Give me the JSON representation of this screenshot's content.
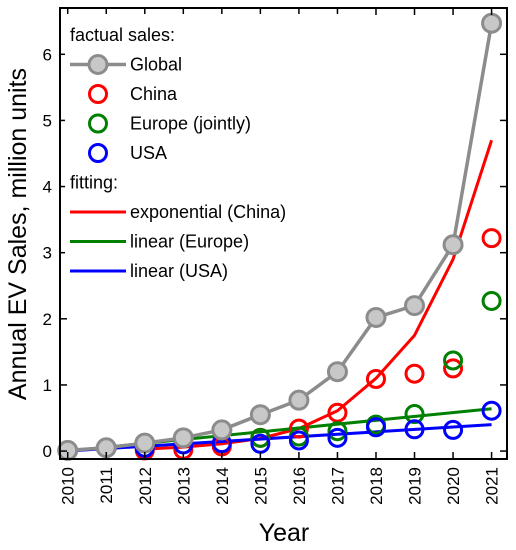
{
  "chart_data": {
    "type": "line",
    "xlabel": "Year",
    "ylabel": "Annual EV Sales, million units",
    "xlim": [
      2009.8,
      2021.4
    ],
    "ylim": [
      -0.12,
      6.7
    ],
    "x_ticks": [
      2010,
      2011,
      2012,
      2013,
      2014,
      2015,
      2016,
      2017,
      2018,
      2019,
      2020,
      2021
    ],
    "y_ticks": [
      0,
      1,
      2,
      3,
      4,
      5,
      6
    ],
    "legend": {
      "position": "top-left",
      "sections": [
        {
          "heading": "factual sales:",
          "entries": [
            "Global",
            "China",
            "Europe (jointly)",
            "USA"
          ]
        },
        {
          "heading": "fitting:",
          "entries": [
            "exponential (China)",
            "linear (Europe)",
            "linear (USA)"
          ]
        }
      ]
    },
    "series": [
      {
        "name": "Global",
        "kind": "line+marker",
        "color": "#8c8c8c",
        "x": [
          2010,
          2011,
          2012,
          2013,
          2014,
          2015,
          2016,
          2017,
          2018,
          2019,
          2020,
          2021
        ],
        "y": [
          0.01,
          0.05,
          0.12,
          0.2,
          0.32,
          0.55,
          0.77,
          1.2,
          2.02,
          2.2,
          3.12,
          6.47
        ]
      },
      {
        "name": "China",
        "kind": "marker",
        "color": "#ff0000",
        "x": [
          2012,
          2013,
          2014,
          2015,
          2016,
          2017,
          2018,
          2019,
          2020,
          2021
        ],
        "y": [
          0.01,
          0.02,
          0.07,
          0.2,
          0.34,
          0.58,
          1.09,
          1.17,
          1.25,
          3.22
        ]
      },
      {
        "name": "Europe (jointly)",
        "kind": "marker",
        "color": "#008000",
        "x": [
          2015,
          2016,
          2017,
          2018,
          2019,
          2020,
          2021
        ],
        "y": [
          0.2,
          0.22,
          0.3,
          0.4,
          0.56,
          1.37,
          2.27
        ]
      },
      {
        "name": "USA",
        "kind": "marker",
        "color": "#0000ff",
        "x": [
          2012,
          2013,
          2014,
          2015,
          2016,
          2017,
          2018,
          2019,
          2020,
          2021
        ],
        "y": [
          0.05,
          0.1,
          0.12,
          0.11,
          0.16,
          0.2,
          0.36,
          0.33,
          0.32,
          0.61
        ]
      },
      {
        "name": "exponential (China)",
        "kind": "line",
        "color": "#ff0000",
        "x": [
          2012,
          2013,
          2014,
          2015,
          2016,
          2017,
          2018,
          2019,
          2020,
          2021
        ],
        "y": [
          0.03,
          0.06,
          0.11,
          0.19,
          0.34,
          0.61,
          1.1,
          1.75,
          2.9,
          4.7
        ]
      },
      {
        "name": "linear (Europe)",
        "kind": "line",
        "color": "#008000",
        "x": [
          2010,
          2021
        ],
        "y": [
          0.0,
          0.64
        ]
      },
      {
        "name": "linear (USA)",
        "kind": "line",
        "color": "#0000ff",
        "x": [
          2010,
          2021
        ],
        "y": [
          0.0,
          0.4
        ]
      }
    ]
  }
}
